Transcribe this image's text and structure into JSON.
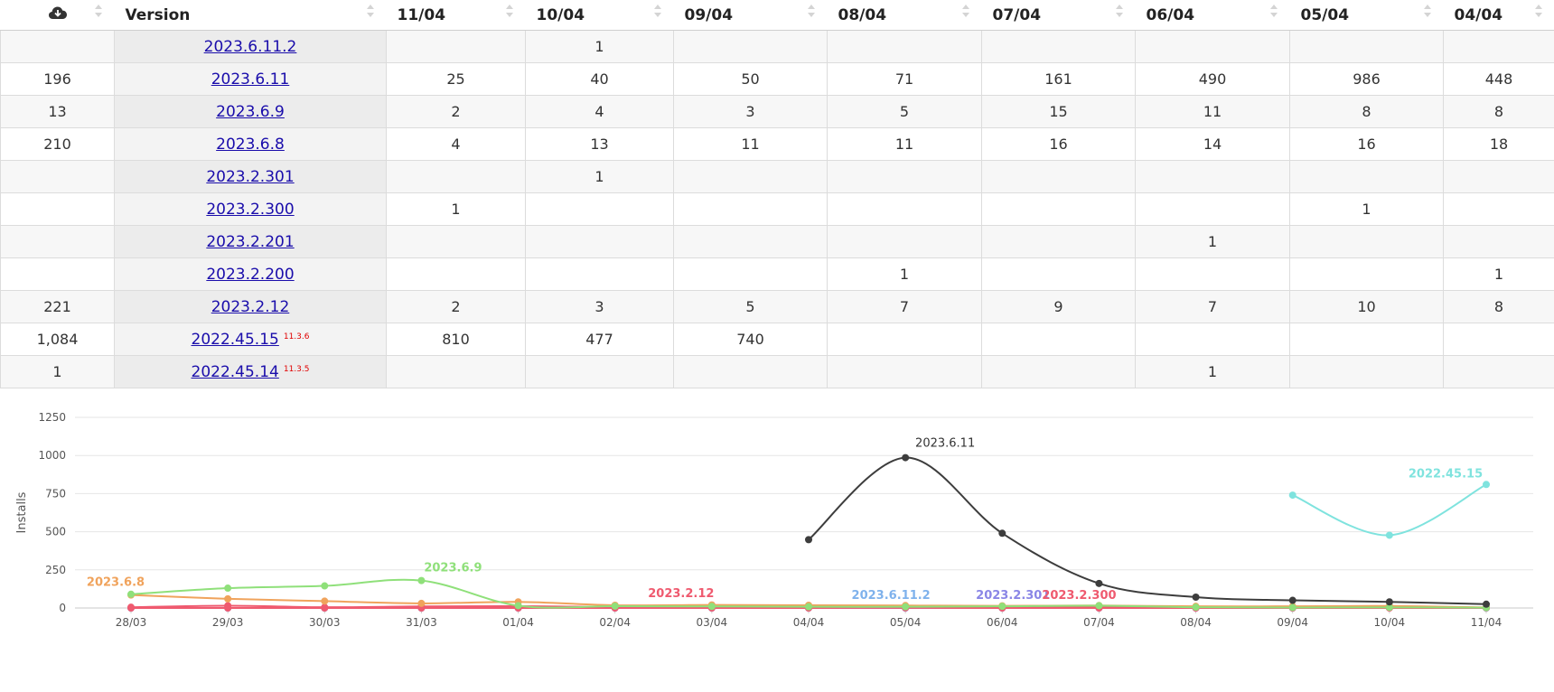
{
  "table": {
    "header": {
      "download_icon": "cloud-download-icon",
      "version": "Version",
      "dates": [
        "11/04",
        "10/04",
        "09/04",
        "08/04",
        "07/04",
        "06/04",
        "05/04",
        "04/04"
      ]
    },
    "rows": [
      {
        "total": "",
        "version": "2023.6.11.2",
        "sup": "",
        "values": [
          "",
          "1",
          "",
          "",
          "",
          "",
          "",
          ""
        ]
      },
      {
        "total": "196",
        "version": "2023.6.11",
        "sup": "",
        "values": [
          "25",
          "40",
          "50",
          "71",
          "161",
          "490",
          "986",
          "448"
        ]
      },
      {
        "total": "13",
        "version": "2023.6.9",
        "sup": "",
        "values": [
          "2",
          "4",
          "3",
          "5",
          "15",
          "11",
          "8",
          "8"
        ]
      },
      {
        "total": "210",
        "version": "2023.6.8",
        "sup": "",
        "values": [
          "4",
          "13",
          "11",
          "11",
          "16",
          "14",
          "16",
          "18"
        ]
      },
      {
        "total": "",
        "version": "2023.2.301",
        "sup": "",
        "values": [
          "",
          "1",
          "",
          "",
          "",
          "",
          "",
          ""
        ]
      },
      {
        "total": "",
        "version": "2023.2.300",
        "sup": "",
        "values": [
          "1",
          "",
          "",
          "",
          "",
          "",
          "1",
          ""
        ]
      },
      {
        "total": "",
        "version": "2023.2.201",
        "sup": "",
        "values": [
          "",
          "",
          "",
          "",
          "",
          "1",
          "",
          ""
        ]
      },
      {
        "total": "",
        "version": "2023.2.200",
        "sup": "",
        "values": [
          "",
          "",
          "",
          "1",
          "",
          "",
          "",
          "1"
        ]
      },
      {
        "total": "221",
        "version": "2023.2.12",
        "sup": "",
        "values": [
          "2",
          "3",
          "5",
          "7",
          "9",
          "7",
          "10",
          "8"
        ]
      },
      {
        "total": "1,084",
        "version": "2022.45.15",
        "sup": "11.3.6",
        "values": [
          "810",
          "477",
          "740",
          "",
          "",
          "",
          "",
          ""
        ]
      },
      {
        "total": "1",
        "version": "2022.45.14",
        "sup": "11.3.5",
        "values": [
          "",
          "",
          "",
          "",
          "",
          "1",
          "",
          ""
        ]
      }
    ]
  },
  "chart_data": {
    "type": "line",
    "ylabel": "Installs",
    "ylim": [
      0,
      1250
    ],
    "yticks": [
      0,
      250,
      500,
      750,
      1000,
      1250
    ],
    "categories": [
      "28/03",
      "29/03",
      "30/03",
      "31/03",
      "01/04",
      "02/04",
      "03/04",
      "04/04",
      "05/04",
      "06/04",
      "07/04",
      "08/04",
      "09/04",
      "10/04",
      "11/04"
    ],
    "grid": true,
    "series": [
      {
        "name": "2023.6.11",
        "color": "#3d3d3d",
        "values": [
          null,
          null,
          null,
          null,
          null,
          null,
          null,
          448,
          986,
          490,
          161,
          71,
          50,
          40,
          25
        ],
        "label_at": 8
      },
      {
        "name": "2022.45.15",
        "color": "#7fe3de",
        "values": [
          null,
          null,
          null,
          null,
          null,
          null,
          null,
          null,
          null,
          null,
          null,
          null,
          740,
          477,
          810
        ],
        "label_at": 14
      },
      {
        "name": "2023.6.9",
        "color": "#8fe07a",
        "values": [
          90,
          130,
          145,
          180,
          15,
          12,
          10,
          8,
          8,
          11,
          15,
          5,
          3,
          4,
          2
        ],
        "label_at": 3
      },
      {
        "name": "2023.6.8",
        "color": "#f0a35c",
        "values": [
          85,
          60,
          45,
          30,
          40,
          18,
          20,
          18,
          16,
          14,
          16,
          11,
          11,
          13,
          4
        ],
        "label_at": 0
      },
      {
        "name": "2023.2.12",
        "color": "#ef5a6f",
        "values": [
          5,
          15,
          5,
          10,
          12,
          8,
          18,
          8,
          10,
          7,
          9,
          7,
          5,
          3,
          2
        ],
        "label_at": 6
      },
      {
        "name": "2023.6.11.2",
        "color": "#7fb2ec",
        "values": [
          0,
          0,
          0,
          0,
          0,
          0,
          0,
          0,
          0,
          0,
          0,
          0,
          0,
          1,
          0
        ],
        "label_at": 8
      },
      {
        "name": "2023.2.301",
        "color": "#8a86e6",
        "values": [
          0,
          0,
          0,
          0,
          0,
          0,
          0,
          0,
          0,
          0,
          0,
          0,
          0,
          1,
          0
        ],
        "label_at": 9
      },
      {
        "name": "2023.2.300",
        "color": "#ef5a6f",
        "values": [
          0,
          0,
          0,
          0,
          0,
          0,
          0,
          0,
          1,
          0,
          0,
          0,
          0,
          0,
          1
        ],
        "label_at": 10
      }
    ]
  }
}
